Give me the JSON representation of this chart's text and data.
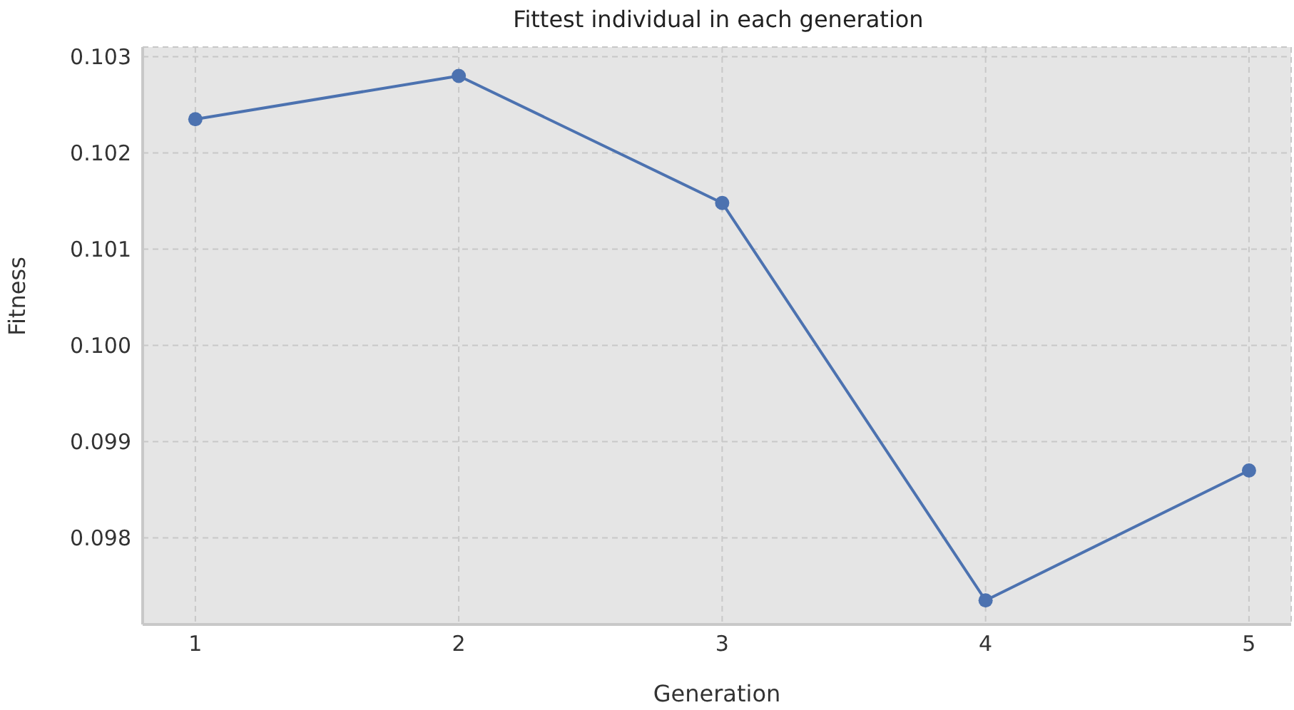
{
  "chart_data": {
    "type": "line",
    "title": "Fittest individual in each generation",
    "xlabel": "Generation",
    "ylabel": "Fitness",
    "x": [
      1,
      2,
      3,
      4,
      5
    ],
    "series": [
      {
        "color": "#4c72b0",
        "values": [
          0.10235,
          0.1028,
          0.10148,
          0.09735,
          0.0987
        ]
      }
    ],
    "xlim": [
      0.8,
      5.16
    ],
    "xticks": [
      1,
      2,
      3,
      4,
      5
    ],
    "ylim": [
      0.0971,
      0.1031
    ],
    "yticks": [
      0.098,
      0.099,
      {
        "value": 0.1,
        "label": "0.100"
      },
      0.101,
      0.102,
      0.103
    ],
    "grid": true,
    "marker": "circle",
    "line_style": "solid",
    "legend": false
  }
}
